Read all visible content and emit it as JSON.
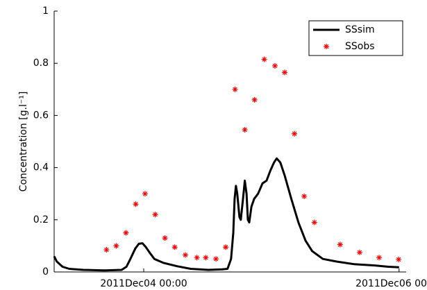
{
  "chart_data": {
    "type": "line",
    "ylabel": "Concentration [g.l⁻¹]",
    "xlim": [
      "2011Dec03 07:10",
      "2011Dec06 01:20"
    ],
    "xticks": [
      "2011Dec04 00:00",
      "2011Dec06 00:00"
    ],
    "ylim": [
      0,
      1
    ],
    "yticks": [
      0,
      0.2,
      0.4,
      0.6,
      0.8,
      1
    ],
    "legend": "upper right",
    "series": [
      {
        "name": "SSsim",
        "color": "#000000",
        "marker": "none",
        "x": [
          "2011Dec03 07:10",
          "2011Dec03 07:40",
          "2011Dec03 08:45",
          "2011Dec03 10:00",
          "2011Dec03 12:40",
          "2011Dec03 16:35",
          "2011Dec03 19:50",
          "2011Dec03 20:45",
          "2011Dec03 21:30",
          "2011Dec03 22:25",
          "2011Dec03 23:05",
          "2011Dec03 23:45",
          "2011Dec04 00:25",
          "2011Dec04 01:05",
          "2011Dec04 02:00",
          "2011Dec04 03:40",
          "2011Dec04 06:15",
          "2011Dec04 08:50",
          "2011Dec04 12:10",
          "2011Dec04 14:45",
          "2011Dec04 15:45",
          "2011Dec04 16:25",
          "2011Dec04 16:50",
          "2011Dec04 17:05",
          "2011Dec04 17:20",
          "2011Dec04 17:35",
          "2011Dec04 18:00",
          "2011Dec04 18:15",
          "2011Dec04 18:40",
          "2011Dec04 19:00",
          "2011Dec04 19:20",
          "2011Dec04 19:35",
          "2011Dec04 19:50",
          "2011Dec04 20:15",
          "2011Dec04 20:45",
          "2011Dec04 21:30",
          "2011Dec04 22:20",
          "2011Dec04 23:05",
          "2011Dec04 23:50",
          "2011Dec05 00:30",
          "2011Dec05 01:00",
          "2011Dec05 01:40",
          "2011Dec05 02:30",
          "2011Dec05 03:45",
          "2011Dec05 05:05",
          "2011Dec05 06:25",
          "2011Dec05 07:40",
          "2011Dec05 09:40",
          "2011Dec05 12:15",
          "2011Dec05 15:30",
          "2011Dec05 19:25",
          "2011Dec05 22:00",
          "2011Dec06 00:00"
        ],
        "values": [
          0.06,
          0.04,
          0.02,
          0.012,
          0.008,
          0.006,
          0.008,
          0.02,
          0.05,
          0.09,
          0.108,
          0.11,
          0.095,
          0.075,
          0.05,
          0.035,
          0.022,
          0.012,
          0.008,
          0.01,
          0.012,
          0.05,
          0.15,
          0.28,
          0.33,
          0.3,
          0.21,
          0.2,
          0.28,
          0.35,
          0.3,
          0.2,
          0.19,
          0.25,
          0.28,
          0.3,
          0.34,
          0.35,
          0.39,
          0.42,
          0.435,
          0.42,
          0.37,
          0.28,
          0.19,
          0.12,
          0.08,
          0.05,
          0.04,
          0.03,
          0.025,
          0.02,
          0.018
        ]
      },
      {
        "name": "SSobs",
        "color": "#ff0000",
        "marker": "*",
        "x": [
          "2011Dec03 17:00",
          "2011Dec03 18:50",
          "2011Dec03 20:40",
          "2011Dec03 22:30",
          "2011Dec04 00:15",
          "2011Dec04 02:10",
          "2011Dec04 04:00",
          "2011Dec04 05:50",
          "2011Dec04 07:50",
          "2011Dec04 10:00",
          "2011Dec04 11:40",
          "2011Dec04 13:35",
          "2011Dec04 15:25",
          "2011Dec04 17:10",
          "2011Dec04 19:00",
          "2011Dec04 20:50",
          "2011Dec04 22:40",
          "2011Dec05 00:40",
          "2011Dec05 02:30",
          "2011Dec05 04:20",
          "2011Dec05 06:10",
          "2011Dec05 08:05",
          "2011Dec05 12:55",
          "2011Dec05 16:35",
          "2011Dec05 20:15",
          "2011Dec05 23:55"
        ],
        "values": [
          0.085,
          0.1,
          0.15,
          0.26,
          0.3,
          0.22,
          0.13,
          0.095,
          0.065,
          0.055,
          0.055,
          0.05,
          0.095,
          0.7,
          0.545,
          0.66,
          0.815,
          0.79,
          0.765,
          0.53,
          0.29,
          0.19,
          0.105,
          0.075,
          0.055,
          0.048
        ]
      }
    ]
  }
}
